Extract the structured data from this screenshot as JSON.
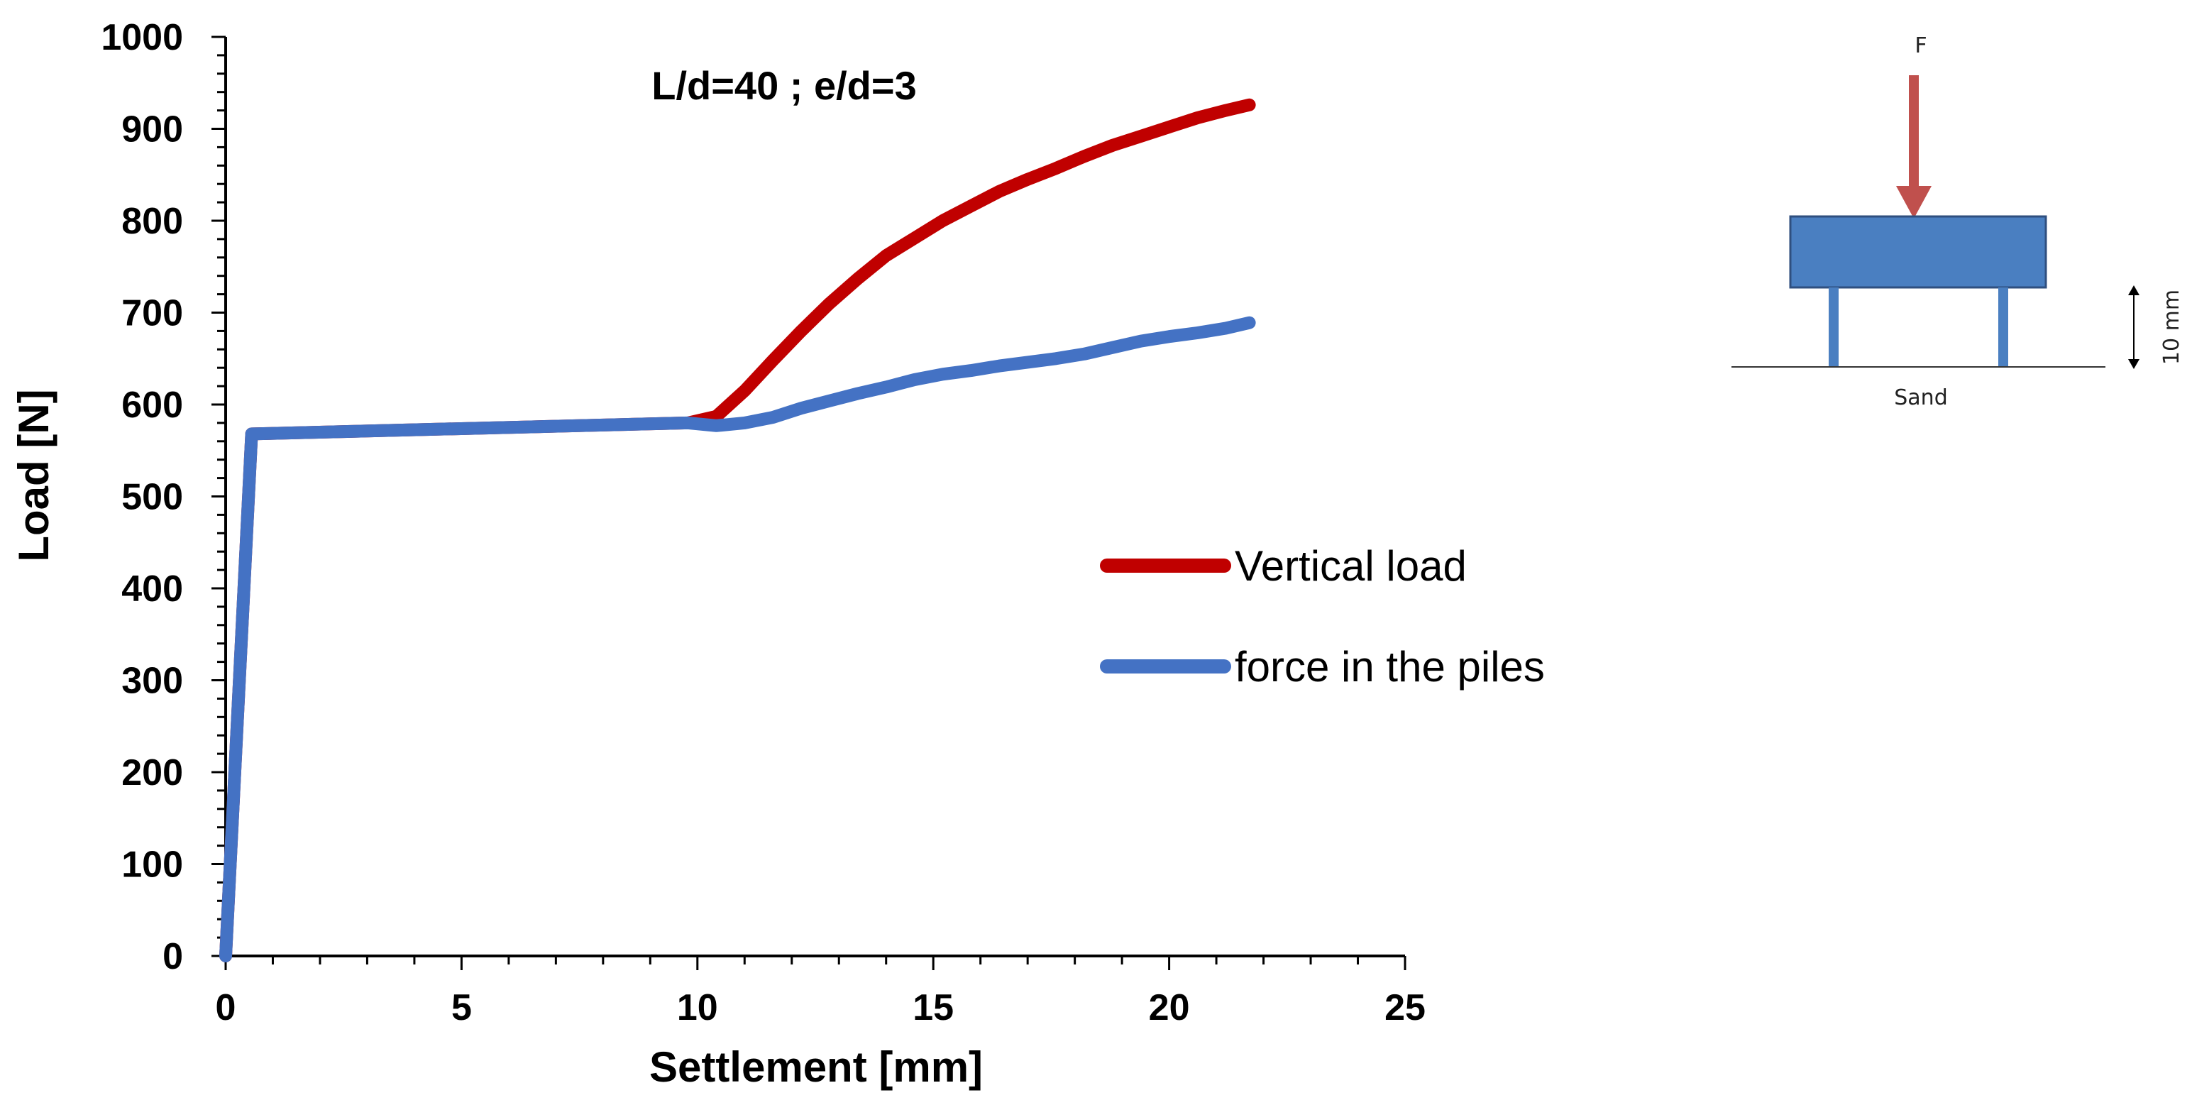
{
  "chart_data": {
    "type": "line",
    "title": "",
    "annotation": "L/d=40 ; e/d=3",
    "xlabel": "Settlement [mm]",
    "ylabel": "Load [N]",
    "xlim": [
      0,
      25
    ],
    "ylim": [
      0,
      1000
    ],
    "xticks": [
      0,
      5,
      10,
      15,
      20,
      25
    ],
    "yticks": [
      0,
      100,
      200,
      300,
      400,
      500,
      600,
      700,
      800,
      900,
      1000
    ],
    "grid": false,
    "legend_position": "center-right",
    "series": [
      {
        "name": "Vertical load",
        "color": "#c00000",
        "x": [
          0,
          0.55,
          9.8,
          10.4,
          11,
          11.6,
          12.2,
          12.8,
          13.4,
          14,
          14.6,
          15.2,
          15.8,
          16.4,
          17,
          17.6,
          18.2,
          18.8,
          19.4,
          20,
          20.6,
          21.2,
          21.7
        ],
        "y": [
          0,
          568,
          580,
          587,
          615,
          648,
          680,
          710,
          737,
          762,
          781,
          800,
          816,
          832,
          845,
          857,
          870,
          882,
          892,
          902,
          912,
          920,
          926
        ]
      },
      {
        "name": "force in the piles",
        "color": "#4472c4",
        "x": [
          0,
          0.55,
          9.8,
          10.4,
          11,
          11.6,
          12.2,
          12.8,
          13.4,
          14,
          14.6,
          15.2,
          15.8,
          16.4,
          17,
          17.6,
          18.2,
          18.8,
          19.4,
          20,
          20.6,
          21.2,
          21.7
        ],
        "y": [
          0,
          568,
          580,
          577,
          580,
          586,
          596,
          604,
          612,
          619,
          627,
          633,
          637,
          642,
          646,
          650,
          655,
          662,
          669,
          674,
          678,
          683,
          689
        ]
      }
    ]
  },
  "inset": {
    "force_label": "F",
    "dimension_label": "10 mm",
    "ground_label": "Sand",
    "cap_color": "#4a7fc1",
    "arrow_color": "#c0504d"
  }
}
